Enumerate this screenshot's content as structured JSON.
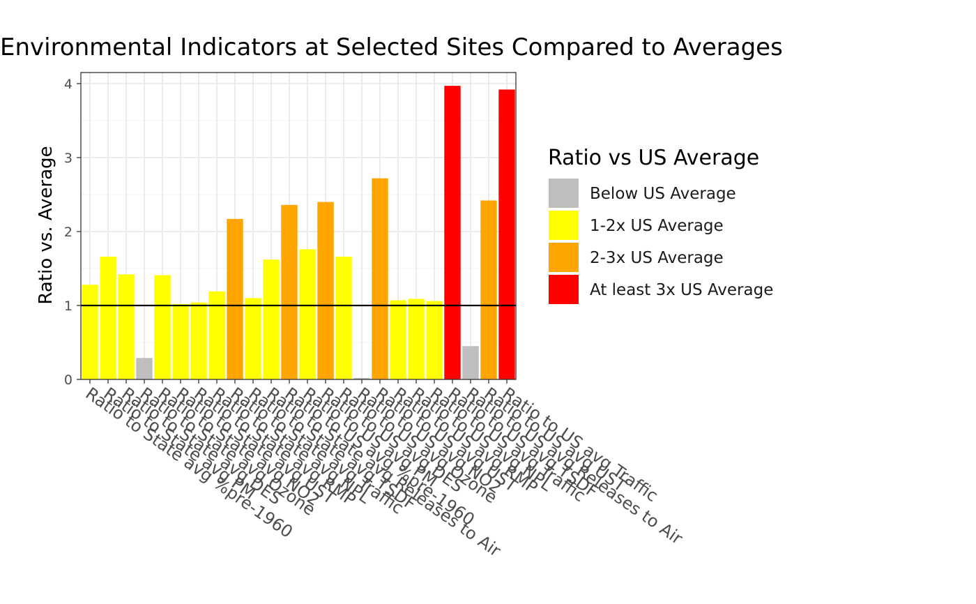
{
  "chart_data": {
    "type": "bar",
    "title": "Environmental Indicators at Selected Sites Compared to Averages",
    "xlabel": "",
    "ylabel": "Ratio vs. Average",
    "ylim": [
      0,
      4.15
    ],
    "yticks": [
      0,
      1,
      2,
      3,
      4
    ],
    "reference_line": 1,
    "grid": true,
    "legend_position": "right",
    "legend": {
      "title": "Ratio vs US Average",
      "entries": [
        {
          "key": "below",
          "label": "Below US Average",
          "color": "#BEBEBE"
        },
        {
          "key": "one_two",
          "label": "1-2x US Average",
          "color": "#FFFF00"
        },
        {
          "key": "two_three",
          "label": "2-3x US Average",
          "color": "#FFA500"
        },
        {
          "key": "three_plus",
          "label": "At least 3x US Average",
          "color": "#FF0000"
        }
      ]
    },
    "categories": [
      "Ratio to State avg %pre-1960",
      "Ratio to State avg PM",
      "Ratio to State avg DES",
      "Ratio to State avg Ozone",
      "Ratio to State avg NO2",
      "Ratio to State avg UST",
      "Ratio to State avg RMP",
      "Ratio to State avg NPL",
      "Ratio to State avg Traffic",
      "Ratio to State avg TSDF",
      "Ratio to State avg Releases to Air",
      "Ratio to US avg %pre-1960",
      "Ratio to US avg PM",
      "Ratio to US avg DES",
      "Ratio to US avg Ozone",
      "Ratio to US avg NO2",
      "Ratio to US avg UST",
      "Ratio to US avg RMP",
      "Ratio to US avg NPL",
      "Ratio to US avg Traffic",
      "Ratio to US avg TSDF",
      "Ratio to US avg Releases to Air",
      "Ratio to US avg UST",
      "Ratio to US avg Traffic"
    ],
    "values": [
      1.28,
      1.66,
      1.42,
      0.29,
      1.41,
      1.02,
      1.04,
      1.19,
      2.17,
      1.1,
      1.62,
      2.36,
      1.76,
      2.4,
      1.66,
      0.02,
      2.72,
      1.07,
      1.09,
      1.06,
      3.97,
      0.45,
      2.42,
      3.92
    ],
    "bar_classes": [
      "one_two",
      "one_two",
      "one_two",
      "below",
      "one_two",
      "one_two",
      "one_two",
      "one_two",
      "two_three",
      "one_two",
      "one_two",
      "two_three",
      "one_two",
      "two_three",
      "one_two",
      "below",
      "two_three",
      "one_two",
      "one_two",
      "one_two",
      "three_plus",
      "below",
      "two_three",
      "three_plus"
    ]
  }
}
